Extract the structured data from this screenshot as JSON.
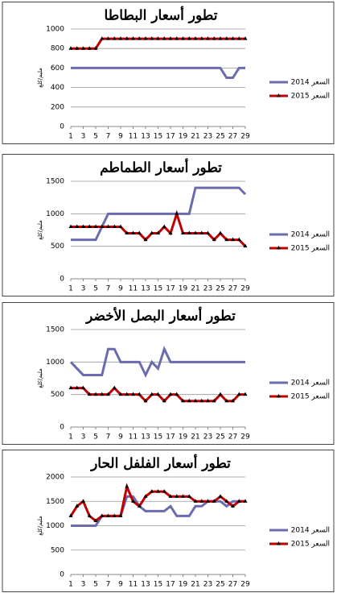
{
  "chart_data": [
    {
      "type": "line",
      "title": "تطور أسعار البطاطا",
      "y_label": "مليم/كلغ",
      "x": [
        1,
        2,
        3,
        4,
        5,
        6,
        7,
        8,
        9,
        10,
        11,
        12,
        13,
        14,
        15,
        16,
        17,
        18,
        19,
        20,
        21,
        22,
        23,
        24,
        25,
        26,
        27,
        28,
        29
      ],
      "xlim": [
        1,
        29
      ],
      "xticks": [
        1,
        3,
        5,
        7,
        9,
        11,
        13,
        15,
        17,
        19,
        21,
        23,
        25,
        27,
        29
      ],
      "ylim": [
        0,
        1000
      ],
      "yticks": [
        0,
        200,
        400,
        600,
        800,
        1000
      ],
      "grid": true,
      "legend": "right",
      "series": [
        {
          "name": "السعر 2014",
          "color": "#6b6bb0",
          "values": [
            600,
            600,
            600,
            600,
            600,
            600,
            600,
            600,
            600,
            600,
            600,
            600,
            600,
            600,
            600,
            600,
            600,
            600,
            600,
            600,
            600,
            600,
            600,
            600,
            600,
            500,
            500,
            600,
            600
          ]
        },
        {
          "name": "السعر 2015",
          "color": "#c00000",
          "marker": "triangle",
          "values": [
            800,
            800,
            800,
            800,
            800,
            900,
            900,
            900,
            900,
            900,
            900,
            900,
            900,
            900,
            900,
            900,
            900,
            900,
            900,
            900,
            900,
            900,
            900,
            900,
            900,
            900,
            900,
            900,
            900
          ]
        }
      ]
    },
    {
      "type": "line",
      "title": "تطور أسعار الطماطم",
      "y_label": "مليم/كلغ",
      "x": [
        1,
        2,
        3,
        4,
        5,
        6,
        7,
        8,
        9,
        10,
        11,
        12,
        13,
        14,
        15,
        16,
        17,
        18,
        19,
        20,
        21,
        22,
        23,
        24,
        25,
        26,
        27,
        28,
        29
      ],
      "xlim": [
        1,
        29
      ],
      "xticks": [
        1,
        3,
        5,
        7,
        9,
        11,
        13,
        15,
        17,
        19,
        21,
        23,
        25,
        27,
        29
      ],
      "ylim": [
        0,
        1500
      ],
      "yticks": [
        0,
        500,
        1000,
        1500
      ],
      "grid": true,
      "legend": "right",
      "series": [
        {
          "name": "السعر 2014",
          "color": "#6b6bb0",
          "values": [
            600,
            600,
            600,
            600,
            600,
            800,
            1000,
            1000,
            1000,
            1000,
            1000,
            1000,
            1000,
            1000,
            1000,
            1000,
            1000,
            1000,
            1000,
            1000,
            1400,
            1400,
            1400,
            1400,
            1400,
            1400,
            1400,
            1400,
            1300
          ]
        },
        {
          "name": "السعر 2015",
          "color": "#c00000",
          "marker": "triangle",
          "values": [
            800,
            800,
            800,
            800,
            800,
            800,
            800,
            800,
            800,
            700,
            700,
            700,
            600,
            700,
            700,
            800,
            700,
            1000,
            700,
            700,
            700,
            700,
            700,
            600,
            700,
            600,
            600,
            600,
            500
          ]
        }
      ]
    },
    {
      "type": "line",
      "title": "تطور أسعار البصل الأخضر",
      "y_label": "مليم/كلغ",
      "x": [
        1,
        2,
        3,
        4,
        5,
        6,
        7,
        8,
        9,
        10,
        11,
        12,
        13,
        14,
        15,
        16,
        17,
        18,
        19,
        20,
        21,
        22,
        23,
        24,
        25,
        26,
        27,
        28,
        29
      ],
      "xlim": [
        1,
        29
      ],
      "xticks": [
        1,
        3,
        5,
        7,
        9,
        11,
        13,
        15,
        17,
        19,
        21,
        23,
        25,
        27,
        29
      ],
      "ylim": [
        0,
        1500
      ],
      "yticks": [
        0,
        500,
        1000,
        1500
      ],
      "grid": true,
      "legend": "right",
      "series": [
        {
          "name": "السعر 2014",
          "color": "#6b6bb0",
          "values": [
            1000,
            900,
            800,
            800,
            800,
            800,
            1200,
            1200,
            1000,
            1000,
            1000,
            1000,
            800,
            1000,
            900,
            1200,
            1000,
            1000,
            1000,
            1000,
            1000,
            1000,
            1000,
            1000,
            1000,
            1000,
            1000,
            1000,
            1000
          ]
        },
        {
          "name": "السعر 2015",
          "color": "#c00000",
          "marker": "triangle",
          "values": [
            600,
            600,
            600,
            500,
            500,
            500,
            500,
            600,
            500,
            500,
            500,
            500,
            400,
            500,
            500,
            400,
            500,
            500,
            400,
            400,
            400,
            400,
            400,
            400,
            500,
            400,
            400,
            500,
            500
          ]
        }
      ]
    },
    {
      "type": "line",
      "title": "تطور أسعار الفلفل الحار",
      "y_label": "مليم/كلغ",
      "x": [
        1,
        2,
        3,
        4,
        5,
        6,
        7,
        8,
        9,
        10,
        11,
        12,
        13,
        14,
        15,
        16,
        17,
        18,
        19,
        20,
        21,
        22,
        23,
        24,
        25,
        26,
        27,
        28,
        29
      ],
      "xlim": [
        1,
        29
      ],
      "xticks": [
        1,
        3,
        5,
        7,
        9,
        11,
        13,
        15,
        17,
        19,
        21,
        23,
        25,
        27,
        29
      ],
      "ylim": [
        0,
        2000
      ],
      "yticks": [
        0,
        500,
        1000,
        1500,
        2000
      ],
      "grid": true,
      "legend": "right",
      "series": [
        {
          "name": "السعر 2014",
          "color": "#6b6bb0",
          "values": [
            1000,
            1000,
            1000,
            1000,
            1000,
            1200,
            1200,
            1200,
            1200,
            1600,
            1600,
            1400,
            1300,
            1300,
            1300,
            1300,
            1400,
            1200,
            1200,
            1200,
            1400,
            1400,
            1500,
            1500,
            1500,
            1400,
            1500,
            1500,
            1500
          ]
        },
        {
          "name": "السعر 2015",
          "color": "#c00000",
          "marker": "triangle",
          "values": [
            1200,
            1400,
            1500,
            1200,
            1100,
            1200,
            1200,
            1200,
            1200,
            1800,
            1500,
            1400,
            1600,
            1700,
            1700,
            1700,
            1600,
            1600,
            1600,
            1600,
            1500,
            1500,
            1500,
            1500,
            1600,
            1500,
            1400,
            1500,
            1500
          ]
        }
      ]
    }
  ]
}
